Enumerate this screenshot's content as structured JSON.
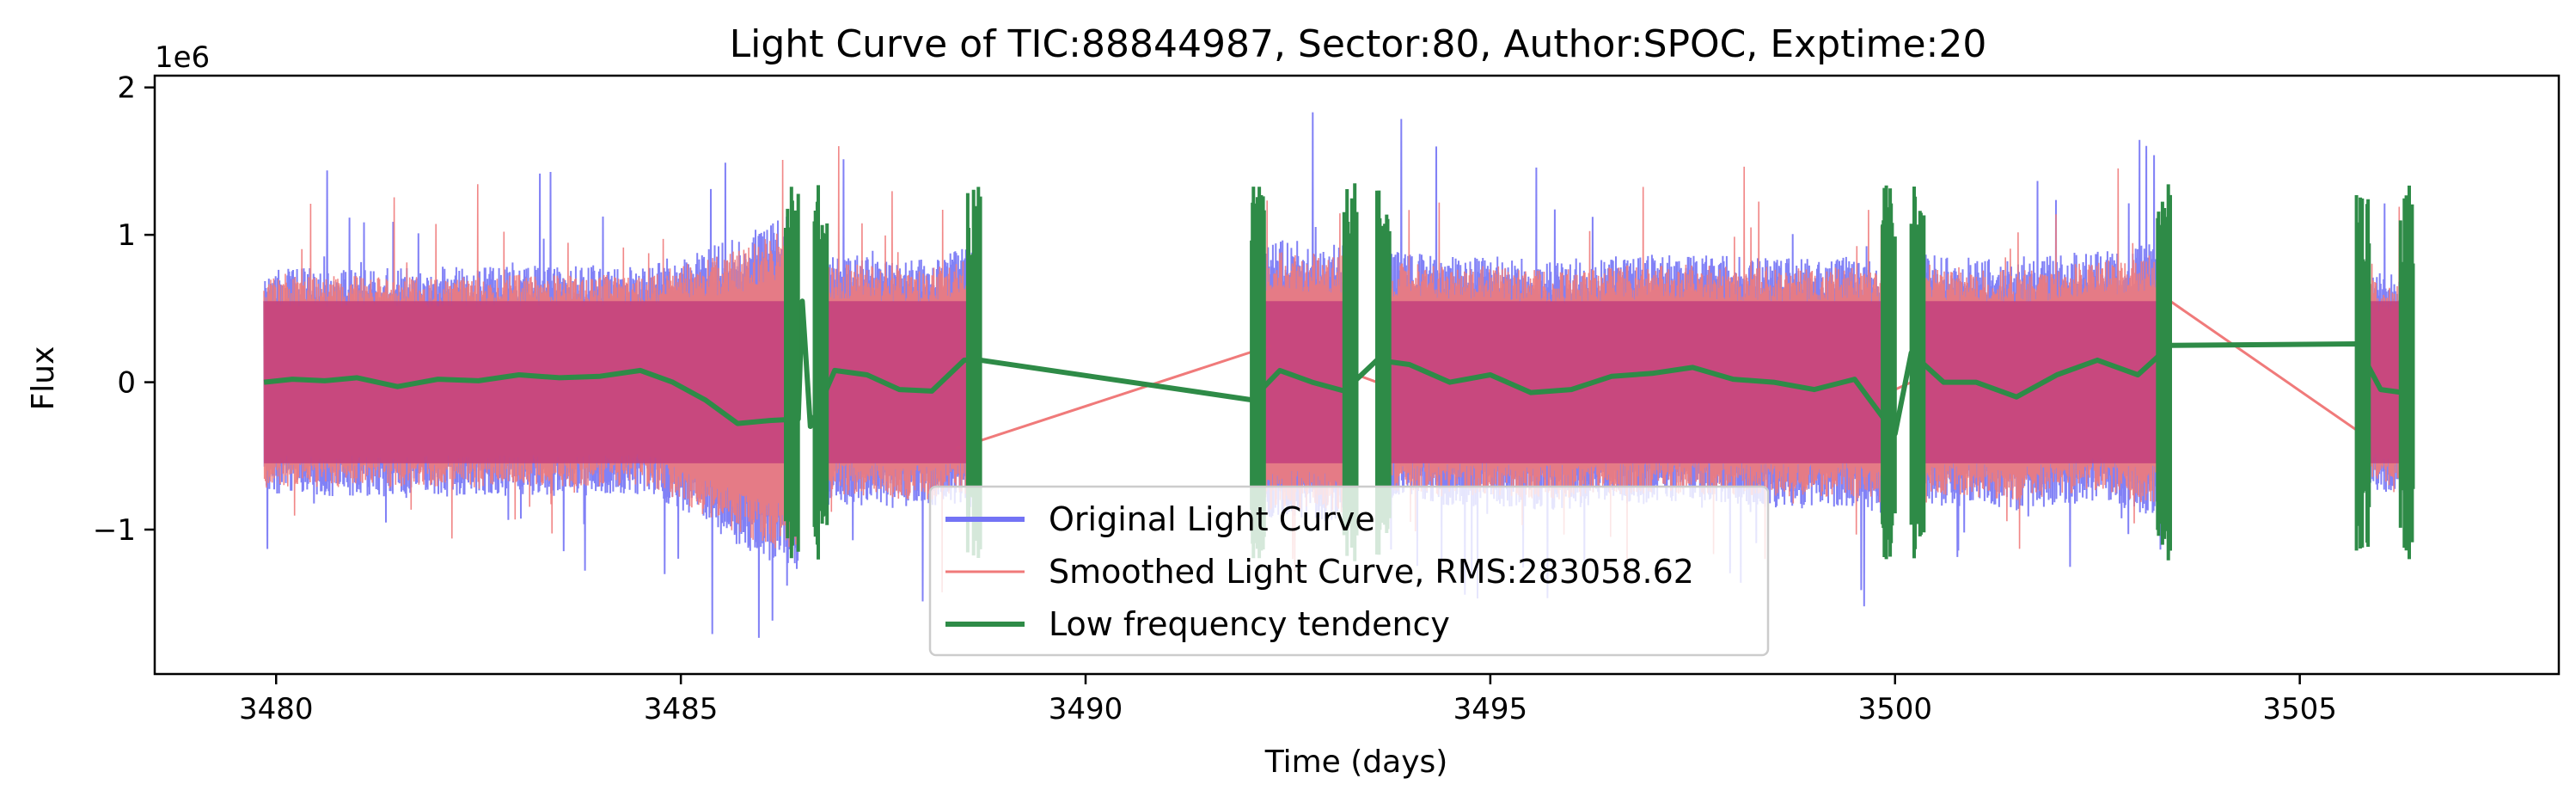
{
  "chart_data": {
    "type": "line",
    "title": "Light Curve of TIC:88844987, Sector:80, Author:SPOC, Exptime:20",
    "xlabel": "Time (days)",
    "ylabel": "Flux",
    "offset_text": "1e6",
    "xlim": [
      3478.5,
      3508.2
    ],
    "ylim": [
      -1.98,
      2.08
    ],
    "x_ticks": [
      3480,
      3485,
      3490,
      3495,
      3500,
      3505
    ],
    "x_tick_labels": [
      "3480",
      "3485",
      "3490",
      "3495",
      "3500",
      "3505"
    ],
    "y_ticks": [
      -1,
      0,
      1,
      2
    ],
    "y_tick_labels": [
      "−1",
      "0",
      "1",
      "2"
    ],
    "grid": false,
    "legend_position": "lower center",
    "segments": [
      {
        "start": 3479.85,
        "end": 3486.45,
        "amp": 0.78,
        "growth": 0.45,
        "from": 3484.6
      },
      {
        "start": 3486.65,
        "end": 3488.7,
        "amp": 0.85,
        "growth": 0.05,
        "from": 3488.0
      },
      {
        "start": 3492.05,
        "end": 3493.35,
        "amp": 0.95,
        "growth": 0.0,
        "from": 3493.0
      },
      {
        "start": 3493.6,
        "end": 3500.0,
        "amp": 0.85,
        "growth": 0.0,
        "from": 3500.0
      },
      {
        "start": 3500.2,
        "end": 3503.4,
        "amp": 0.85,
        "growth": 0.1,
        "from": 3502.5
      },
      {
        "start": 3505.7,
        "end": 3506.4,
        "amp": 0.75,
        "growth": 0.0,
        "from": 3506.4
      }
    ],
    "series": [
      {
        "name": "Original Light Curve",
        "color": "#7373f5",
        "kind": "noisy_envelope"
      },
      {
        "name": "Smoothed Light Curve, RMS:283058.62",
        "color": "#f07a7a",
        "kind": "noisy_envelope",
        "bridges": [
          [
            [
              3488.4,
              -0.45
            ],
            [
              3492.3,
              0.25
            ]
          ],
          [
            [
              3493.35,
              0.05
            ],
            [
              3493.6,
              0.0
            ]
          ],
          [
            [
              3500.0,
              -0.05
            ],
            [
              3500.2,
              0.0
            ]
          ],
          [
            [
              3503.4,
              0.55
            ],
            [
              3505.9,
              -0.4
            ]
          ]
        ]
      },
      {
        "name": "Low frequency tendency",
        "color": "#2e8b47",
        "kind": "trend",
        "x": [
          3479.85,
          3480.2,
          3480.6,
          3481.0,
          3481.5,
          3482.0,
          3482.5,
          3483.0,
          3483.5,
          3484.0,
          3484.5,
          3484.9,
          3485.3,
          3485.7,
          3486.1,
          3486.45,
          3486.5,
          3486.6,
          3486.9,
          3487.3,
          3487.7,
          3488.1,
          3488.5,
          3488.7,
          3492.05,
          3492.4,
          3492.8,
          3493.2,
          3493.35,
          3493.6,
          3494.0,
          3494.5,
          3495.0,
          3495.5,
          3496.0,
          3496.5,
          3497.0,
          3497.5,
          3498.0,
          3498.5,
          3499.0,
          3499.5,
          3500.0,
          3500.2,
          3500.6,
          3501.0,
          3501.5,
          3502.0,
          3502.5,
          3503.0,
          3503.4,
          3505.7,
          3506.0,
          3506.4
        ],
        "y": [
          0.0,
          0.02,
          0.01,
          0.03,
          -0.03,
          0.02,
          0.01,
          0.05,
          0.03,
          0.04,
          0.08,
          0.0,
          -0.12,
          -0.28,
          -0.26,
          -0.25,
          0.55,
          -0.3,
          0.08,
          0.05,
          -0.05,
          -0.06,
          0.15,
          0.15,
          -0.12,
          0.08,
          0.0,
          -0.06,
          0.02,
          0.15,
          0.12,
          0.0,
          0.05,
          -0.07,
          -0.05,
          0.04,
          0.06,
          0.1,
          0.02,
          0.0,
          -0.05,
          0.02,
          -0.35,
          0.2,
          0.0,
          0.0,
          -0.1,
          0.05,
          0.15,
          0.05,
          0.25,
          0.26,
          -0.05,
          -0.08
        ]
      }
    ]
  }
}
